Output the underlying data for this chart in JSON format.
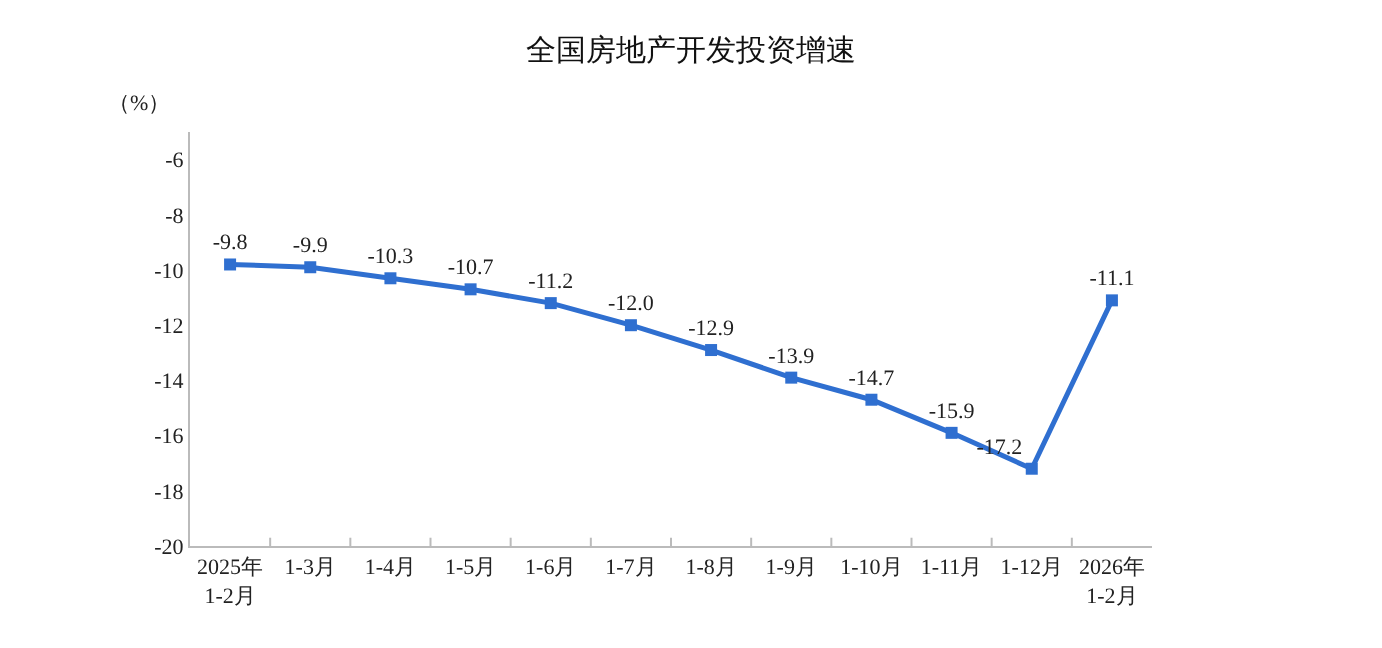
{
  "chart_data": {
    "type": "line",
    "title": "全国房地产开发投资增速",
    "ylabel": "（%）",
    "categories": [
      "2025年\n1-2月",
      "1-3月",
      "1-4月",
      "1-5月",
      "1-6月",
      "1-7月",
      "1-8月",
      "1-9月",
      "1-10月",
      "1-11月",
      "1-12月",
      "2026年\n1-2月"
    ],
    "series": [
      {
        "color": "#2f6fd0",
        "values": [
          -9.8,
          -9.9,
          -10.3,
          -10.7,
          -11.2,
          -12.0,
          -12.9,
          -13.9,
          -14.7,
          -15.9,
          -17.2,
          -11.1
        ],
        "value_labels": [
          "-9.8",
          "-9.9",
          "-10.3",
          "-10.7",
          "-11.2",
          "-12.0",
          "-12.9",
          "-13.9",
          "-14.7",
          "-15.9",
          "-17.2",
          "-11.1"
        ]
      }
    ],
    "ylim": [
      -20,
      -5
    ],
    "yticks": [
      -20,
      -18,
      -16,
      -14,
      -12,
      -10,
      -8,
      -6
    ],
    "legend": false,
    "marker": "square",
    "line_style": "solid"
  }
}
